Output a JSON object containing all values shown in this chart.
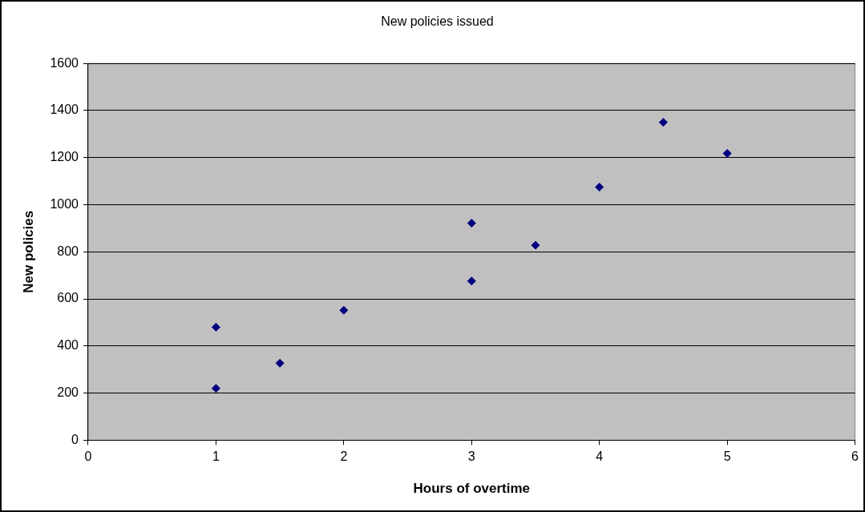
{
  "chart_data": {
    "type": "scatter",
    "title": "New policies issued",
    "xlabel": "Hours of overtime",
    "ylabel": "New policies",
    "series": [
      {
        "color": "#000080",
        "x": [
          1,
          1,
          1.5,
          2,
          3,
          3,
          3.5,
          4,
          4.5,
          5
        ],
        "values": [
          480,
          220,
          327,
          552,
          922,
          676,
          828,
          1075,
          1350,
          1218
        ]
      }
    ],
    "xlim": [
      0,
      6
    ],
    "xticks": [
      0,
      1,
      2,
      3,
      4,
      5,
      6
    ],
    "ylim": [
      0,
      1600
    ],
    "yticks": [
      0,
      200,
      400,
      600,
      800,
      1000,
      1200,
      1400,
      1600
    ],
    "grid": "y",
    "legend": false,
    "marker": "diamond"
  }
}
